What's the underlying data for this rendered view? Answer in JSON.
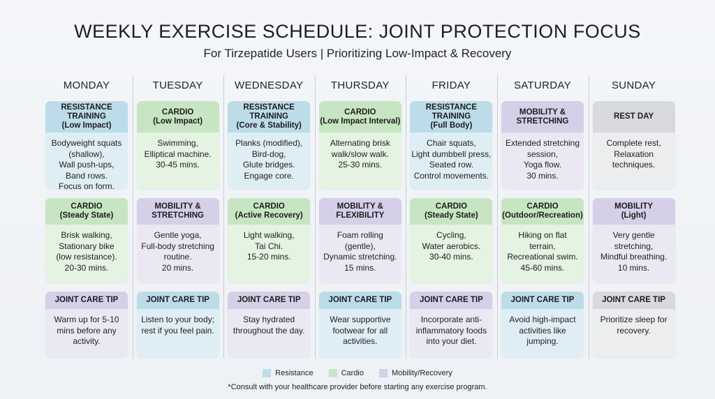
{
  "header": {
    "title": "WEEKLY EXERCISE SCHEDULE: JOINT PROTECTION FOCUS",
    "subtitle": "For Tirzepatide Users | Prioritizing Low-Impact & Recovery"
  },
  "days": [
    {
      "name": "MONDAY",
      "cards": [
        {
          "color": "#bddcea",
          "title": [
            "RESISTANCE",
            "TRAINING",
            "(Low Impact)"
          ],
          "body": [
            "Bodyweight squats",
            "(shallow),",
            "Wall push-ups,",
            "Band rows.",
            "Focus on form."
          ]
        },
        {
          "color": "#c8e5c3",
          "title": [
            "CARDIO",
            "(Steady State)"
          ],
          "body": [
            "Brisk walking,",
            "Stationary bike",
            "(low resistance).",
            "20-30 mins."
          ]
        },
        {
          "color": "#d5cfe8",
          "title": [
            "JOINT CARE TIP"
          ],
          "body": [
            "Warm up for 5-10",
            "mins before any",
            "activity."
          ]
        }
      ]
    },
    {
      "name": "TUESDAY",
      "cards": [
        {
          "color": "#c8e5c3",
          "title": [
            "CARDIO",
            "(Low Impact)"
          ],
          "body": [
            "Swimming,",
            "Elliptical machine.",
            "30-45 mins."
          ]
        },
        {
          "color": "#d5cfe8",
          "title": [
            "MOBILITY &",
            "STRETCHING"
          ],
          "body": [
            "Gentle yoga,",
            "Full-body stretching",
            "routine.",
            "20 mins."
          ]
        },
        {
          "color": "#bddcea",
          "title": [
            "JOINT CARE TIP"
          ],
          "body": [
            "Listen to your body;",
            "rest if you feel pain."
          ]
        }
      ]
    },
    {
      "name": "WEDNESDAY",
      "cards": [
        {
          "color": "#bddcea",
          "title": [
            "RESISTANCE",
            "TRAINING",
            "(Core & Stability)"
          ],
          "body": [
            "Planks (modified),",
            "Bird-dog,",
            "Glute bridges.",
            "Engage core."
          ]
        },
        {
          "color": "#c8e5c3",
          "title": [
            "CARDIO",
            "(Active Recovery)"
          ],
          "body": [
            "Light walking,",
            "Tai Chi.",
            "15-20 mins."
          ]
        },
        {
          "color": "#d5cfe8",
          "title": [
            "JOINT CARE TIP"
          ],
          "body": [
            "Stay hydrated",
            "throughout the day."
          ]
        }
      ]
    },
    {
      "name": "THURSDAY",
      "cards": [
        {
          "color": "#c8e5c3",
          "title": [
            "CARDIO",
            "(Low Impact Interval)"
          ],
          "body": [
            "Alternating brisk",
            "walk/slow walk.",
            "25-30 mins."
          ]
        },
        {
          "color": "#d5cfe8",
          "title": [
            "MOBILITY &",
            "FLEXIBILITY"
          ],
          "body": [
            "Foam rolling",
            "(gentle),",
            "Dynamic stretching.",
            "15 mins."
          ]
        },
        {
          "color": "#bddcea",
          "title": [
            "JOINT CARE TIP"
          ],
          "body": [
            "Wear supportive",
            "footwear for all",
            "activities."
          ]
        }
      ]
    },
    {
      "name": "FRIDAY",
      "cards": [
        {
          "color": "#bddcea",
          "title": [
            "RESISTANCE",
            "TRAINING",
            "(Full Body)"
          ],
          "body": [
            "Chair squats,",
            "Light dumbbell press,",
            "Seated row.",
            "Control movements."
          ]
        },
        {
          "color": "#c8e5c3",
          "title": [
            "CARDIO",
            "(Steady State)"
          ],
          "body": [
            "Cycling,",
            "Water aerobics.",
            "30-40 mins."
          ]
        },
        {
          "color": "#d5cfe8",
          "title": [
            "JOINT CARE TIP"
          ],
          "body": [
            "Incorporate anti-",
            "inflammatory foods",
            "into your diet."
          ]
        }
      ]
    },
    {
      "name": "SATURDAY",
      "cards": [
        {
          "color": "#d5cfe8",
          "title": [
            "MOBILITY &",
            "STRETCHING"
          ],
          "body": [
            "Extended stretching",
            "session,",
            "Yoga flow.",
            "30 mins."
          ]
        },
        {
          "color": "#c8e5c3",
          "title": [
            "CARDIO",
            "(Outdoor/Recreation)"
          ],
          "body": [
            "Hiking on flat",
            "terrain,",
            "Recreational swim.",
            "45-60 mins."
          ]
        },
        {
          "color": "#bddcea",
          "title": [
            "JOINT CARE TIP"
          ],
          "body": [
            "Avoid high-impact",
            "activities like",
            "jumping."
          ]
        }
      ]
    },
    {
      "name": "SUNDAY",
      "cards": [
        {
          "color": "#d7d9dc",
          "title": [
            "REST DAY"
          ],
          "body": [
            "Complete rest,",
            "Relaxation",
            "techniques."
          ]
        },
        {
          "color": "#d5cfe8",
          "title": [
            "MOBILITY",
            "(Light)"
          ],
          "body": [
            "Very gentle",
            "stretching,",
            "Mindful breathing.",
            "10 mins."
          ]
        },
        {
          "color": "#d7d9dc",
          "title": [
            "JOINT CARE TIP"
          ],
          "body": [
            "Prioritize sleep for",
            "recovery."
          ]
        }
      ]
    }
  ],
  "legend": [
    {
      "label": "Resistance",
      "color": "#bddcea"
    },
    {
      "label": "Cardio",
      "color": "#c8e5c3"
    },
    {
      "label": "Mobility/Recovery",
      "color": "#d5cfe8"
    }
  ],
  "footnote": "*Consult with your healthcare provider before starting any exercise program."
}
